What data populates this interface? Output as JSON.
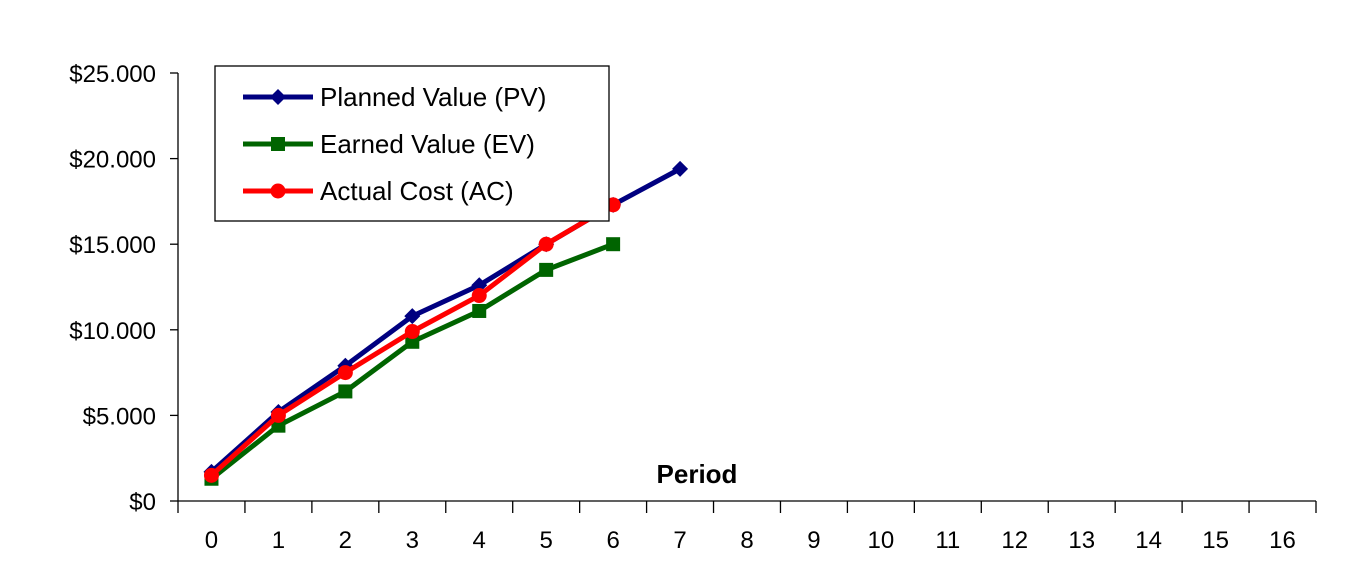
{
  "chart_data": {
    "type": "line",
    "title": "",
    "xlabel": "Period",
    "ylabel": "",
    "x": [
      0,
      1,
      2,
      3,
      4,
      5,
      6,
      7,
      8,
      9,
      10,
      11,
      12,
      13,
      14,
      15,
      16
    ],
    "x_tick_labels": [
      "0",
      "1",
      "2",
      "3",
      "4",
      "5",
      "6",
      "7",
      "8",
      "9",
      "10",
      "11",
      "12",
      "13",
      "14",
      "15",
      "16"
    ],
    "y_ticks": [
      0,
      5000,
      10000,
      15000,
      20000,
      25000
    ],
    "y_tick_labels": [
      "$0",
      "$5.000",
      "$10.000",
      "$15.000",
      "$20.000",
      "$25.000"
    ],
    "ylim": [
      0,
      25000
    ],
    "grid": false,
    "legend_position": "top-left",
    "series": [
      {
        "name": "Planned Value (PV)",
        "color": "#000080",
        "marker": "diamond",
        "x": [
          0,
          1,
          2,
          3,
          4,
          5,
          6,
          7
        ],
        "values": [
          1700,
          5200,
          7900,
          10800,
          12600,
          15000,
          17300,
          19400
        ]
      },
      {
        "name": "Earned Value (EV)",
        "color": "#006400",
        "marker": "square",
        "x": [
          0,
          1,
          2,
          3,
          4,
          5,
          6
        ],
        "values": [
          1300,
          4400,
          6400,
          9300,
          11100,
          13500,
          15000
        ]
      },
      {
        "name": "Actual Cost (AC)",
        "color": "#ff0000",
        "marker": "circle",
        "x": [
          0,
          1,
          2,
          3,
          4,
          5,
          6
        ],
        "values": [
          1500,
          5000,
          7500,
          9900,
          12000,
          15000,
          17300
        ]
      }
    ]
  }
}
